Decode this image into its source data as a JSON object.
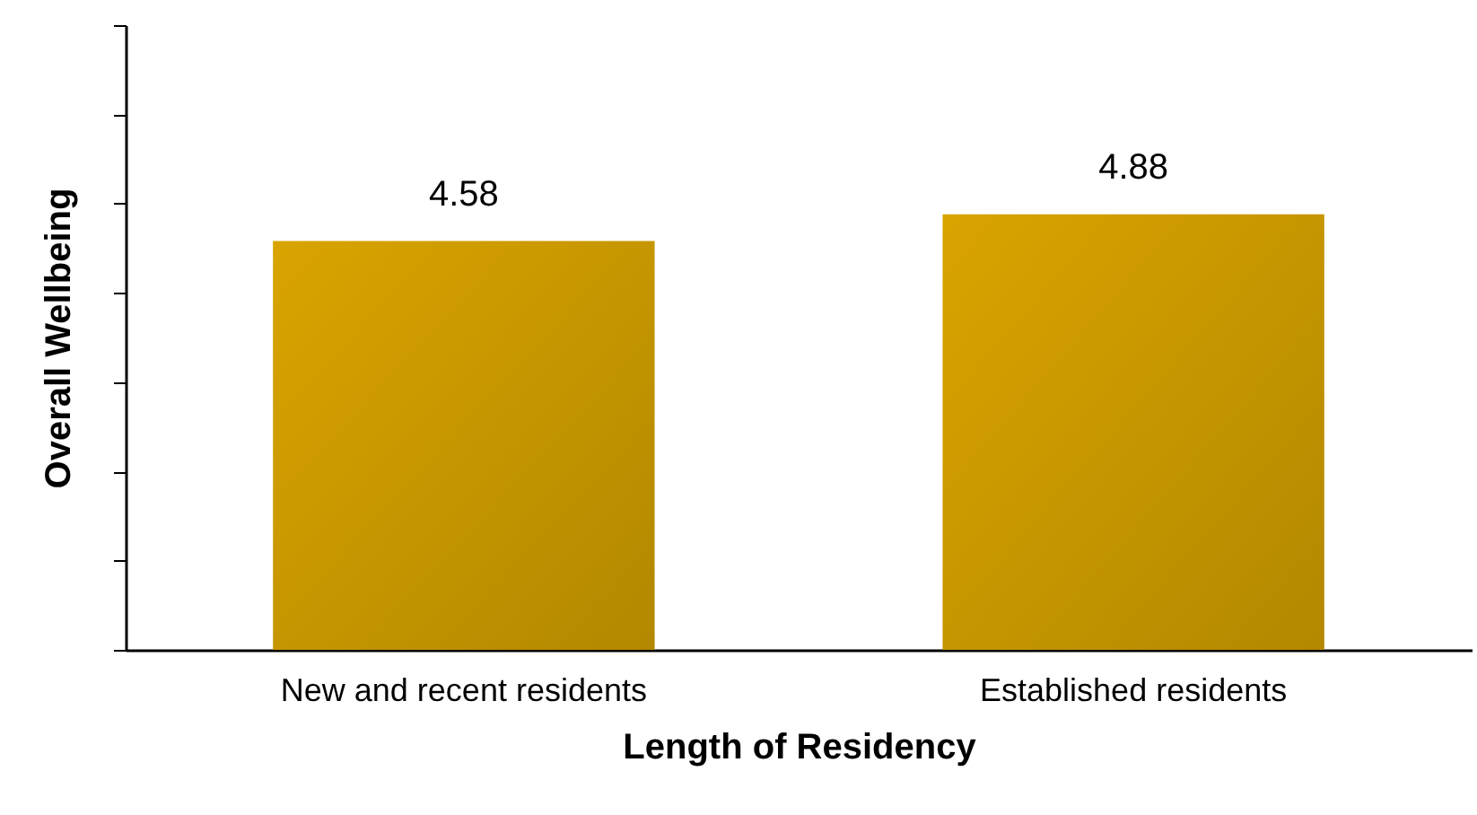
{
  "chart_data": {
    "type": "bar",
    "xlabel": "Length of Residency",
    "ylabel": "Overall Wellbeing",
    "categories": [
      "New and recent residents",
      "Established residents"
    ],
    "values": [
      4.58,
      4.88
    ],
    "color": "#d9a400",
    "ylim": [
      0,
      7
    ],
    "yticks": [
      {
        "value": 0,
        "label": null
      },
      {
        "value": 1,
        "label": null
      },
      {
        "value": 2,
        "label": null
      },
      {
        "value": 3,
        "label": null
      },
      {
        "value": 4,
        "label": null
      },
      {
        "value": 5,
        "label": null
      },
      {
        "value": 6,
        "label": null
      },
      {
        "value": 7,
        "label": null
      }
    ],
    "tick_labels": "x",
    "grid": false,
    "data_labels": true
  }
}
